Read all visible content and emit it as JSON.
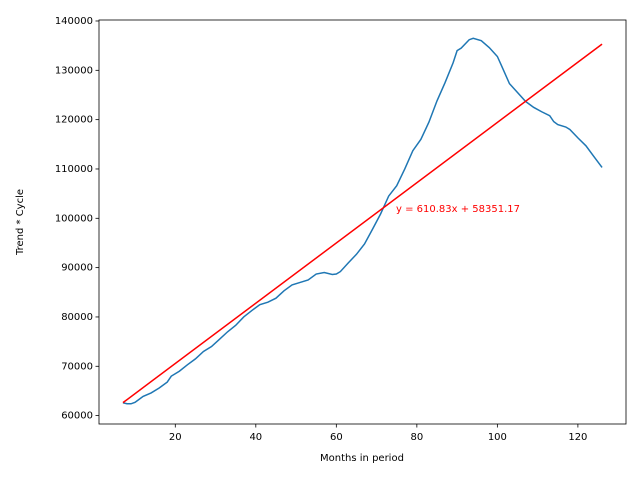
{
  "chart_data": {
    "type": "line",
    "xlabel": "Months in period",
    "ylabel": "Trend * Cycle",
    "annotation": "y = 610.83x + 58351.17",
    "xlim": [
      1.05,
      131.95
    ],
    "xticks": [
      20,
      40,
      60,
      80,
      100,
      120
    ],
    "ylim": [
      58300,
      140200
    ],
    "yticks": [
      60000,
      70000,
      80000,
      90000,
      100000,
      110000,
      120000,
      130000,
      140000
    ],
    "series": [
      {
        "color": "#1f77b4",
        "x": [
          7,
          8,
          9,
          10,
          11,
          12,
          14,
          16,
          18,
          19,
          21,
          23,
          25,
          27,
          29,
          31,
          33,
          35,
          37,
          39,
          41,
          43,
          45,
          47,
          49,
          51,
          53,
          55,
          57,
          59,
          60,
          61,
          63,
          65,
          67,
          69,
          71,
          73,
          75,
          77,
          79,
          81,
          83,
          85,
          87,
          89,
          90,
          91,
          93,
          94,
          96,
          98,
          100,
          101,
          103,
          105,
          107,
          109,
          111,
          113,
          114,
          115,
          117,
          118,
          120,
          122,
          124,
          126
        ],
        "values": [
          62600,
          62400,
          62400,
          62700,
          63300,
          63900,
          64600,
          65600,
          66800,
          68000,
          69000,
          70300,
          71500,
          73000,
          74000,
          75500,
          77000,
          78300,
          80000,
          81300,
          82500,
          83000,
          83800,
          85300,
          86500,
          87000,
          87500,
          88700,
          89000,
          88600,
          88700,
          89200,
          91000,
          92700,
          94800,
          97800,
          100900,
          104500,
          106600,
          110000,
          113700,
          116000,
          119500,
          123800,
          127500,
          131500,
          134000,
          134500,
          136200,
          136500,
          136000,
          134600,
          132800,
          131000,
          127300,
          125500,
          123700,
          122500,
          121600,
          120800,
          119600,
          119000,
          118500,
          118000,
          116300,
          114700,
          112500,
          110300
        ]
      },
      {
        "color": "red",
        "x": [
          7,
          126
        ],
        "values": [
          62627,
          135316
        ]
      }
    ]
  }
}
